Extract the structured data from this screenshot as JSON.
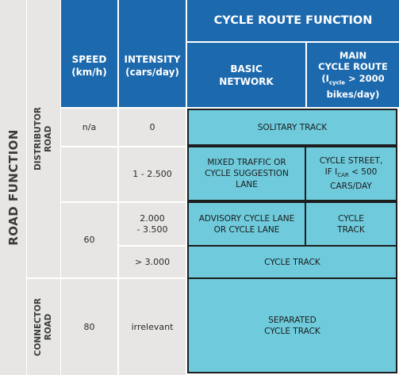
{
  "table": {
    "road_function_label": "ROAD FUNCTION",
    "cycle_route_function_label": "CYCLE ROUTE FUNCTION",
    "speed_header": [
      "SPEED",
      "(km/h)"
    ],
    "intensity_header": [
      "INTENSITY",
      "(cars/day)"
    ],
    "basic_network_header": [
      "BASIC",
      "NETWORK"
    ],
    "main_route_header": {
      "line1": "MAIN",
      "line2": "CYCLE ROUTE",
      "line3_pre": "(I",
      "line3_sub": "cycle",
      "line3_post": " > 2000",
      "line4": "bikes/day)"
    },
    "distributor_road": [
      "DISTRIBUTOR",
      "ROAD"
    ],
    "connector_road": [
      "CONNECTOR",
      "ROAD"
    ],
    "speed_na": "n/a",
    "speed_60": "60",
    "speed_80": "80",
    "intensity_0": "0",
    "intensity_1_2500": "1 - 2.500",
    "intensity_2000_3500": [
      "2.000",
      "- 3.500"
    ],
    "intensity_gt_3000": "> 3.000",
    "intensity_irrelevant": "irrelevant",
    "solitary_track": "SOLITARY TRACK",
    "mixed_traffic": [
      "MIXED TRAFFIC OR",
      "CYCLE SUGGESTION",
      "LANE"
    ],
    "cycle_street": {
      "line1": "CYCLE STREET,",
      "line2_pre": "IF I",
      "line2_sub": "CAR",
      "line2_post": " < 500",
      "line3": "CARS/DAY"
    },
    "advisory_lane": [
      "ADVISORY CYCLE LANE",
      "OR CYCLE LANE"
    ],
    "cycle_track_small": [
      "CYCLE",
      "TRACK"
    ],
    "cycle_track": "CYCLE TRACK",
    "separated_track": [
      "SEPARATED",
      "CYCLE TRACK"
    ]
  },
  "colors": {
    "header_blue": "#1c69ad",
    "cell_gray": "#e7e6e5",
    "facility_cyan": "#6fcbdc"
  }
}
